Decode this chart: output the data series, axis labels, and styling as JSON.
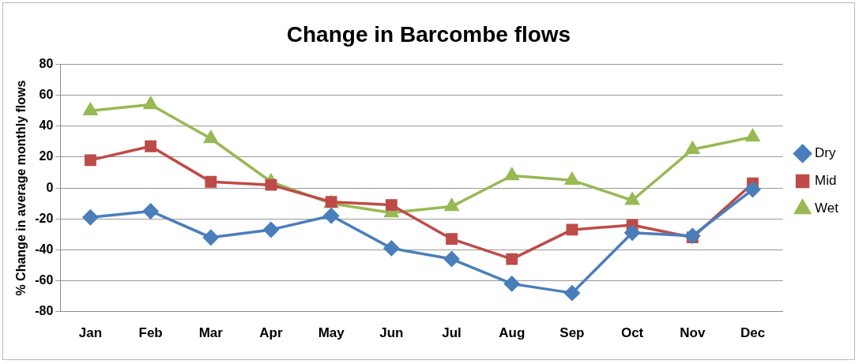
{
  "chart_data": {
    "type": "line",
    "title": "Change in Barcombe flows",
    "ylabel": "% Change in average monthly flows",
    "categories": [
      "Jan",
      "Feb",
      "Mar",
      "Apr",
      "May",
      "Jun",
      "Jul",
      "Aug",
      "Sep",
      "Oct",
      "Nov",
      "Dec"
    ],
    "series": [
      {
        "name": "Dry",
        "color": "#4a7ebb",
        "marker": "diamond",
        "values": [
          -19,
          -15,
          -32,
          -27,
          -18,
          -39,
          -46,
          -62,
          -68,
          -29,
          -31,
          -1
        ]
      },
      {
        "name": "Mid",
        "color": "#be4b48",
        "marker": "square",
        "values": [
          18,
          27,
          4,
          2,
          -9,
          -11,
          -33,
          -46,
          -27,
          -24,
          -32,
          3
        ]
      },
      {
        "name": "Wet",
        "color": "#98b954",
        "marker": "triangle",
        "values": [
          50,
          54,
          32,
          4,
          -10,
          -16,
          -12,
          8,
          5,
          -8,
          25,
          33
        ]
      }
    ],
    "ylim": [
      -80,
      80
    ],
    "yticks": [
      -80,
      -60,
      -40,
      -20,
      0,
      20,
      40,
      60,
      80
    ],
    "grid": "y",
    "legend": "right",
    "line_style": "solid"
  }
}
